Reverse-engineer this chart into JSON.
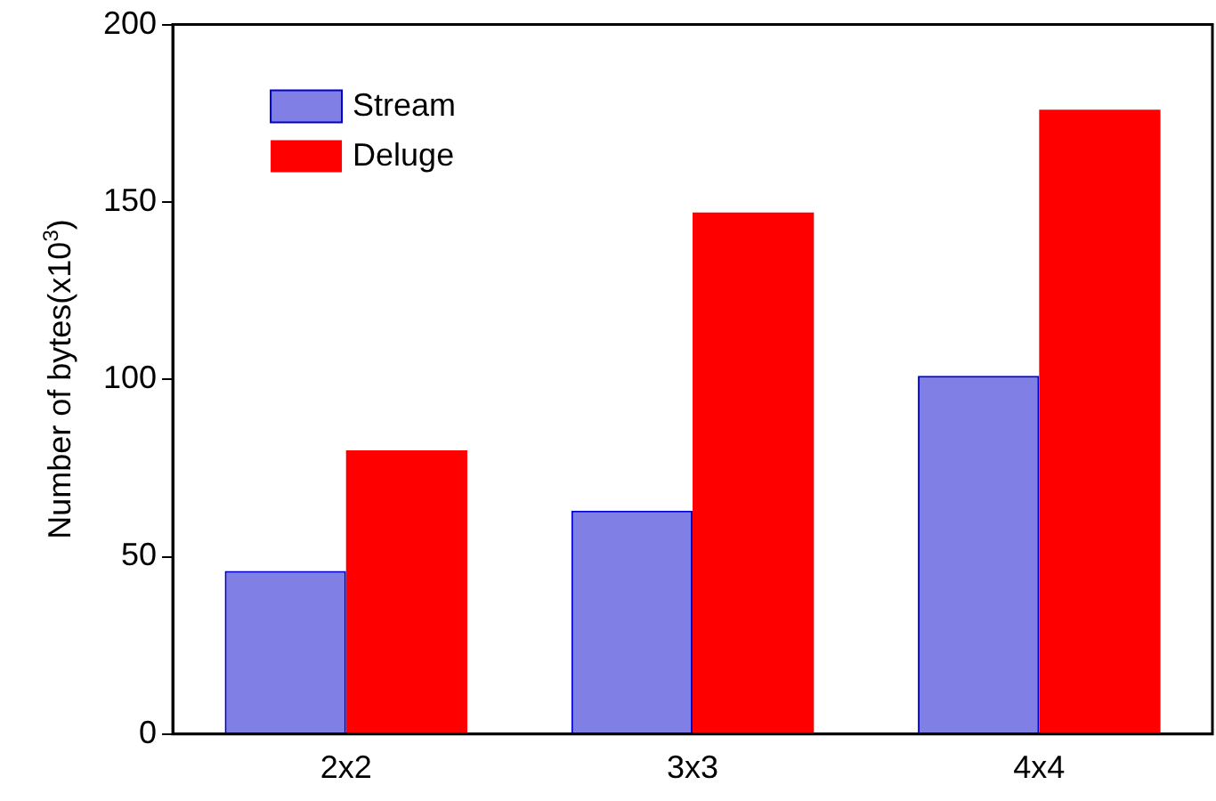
{
  "chart_data": {
    "type": "bar",
    "ylabel": "Number of bytes(x10$^{3}$)",
    "categories": [
      "2x2",
      "3x3",
      "4x4"
    ],
    "series": [
      {
        "name": "Stream",
        "color": "#0000cc",
        "values": [
          46,
          63,
          101
        ]
      },
      {
        "name": "Deluge",
        "color": "#ff0000",
        "values": [
          80,
          147,
          176
        ]
      }
    ],
    "ylim": [
      0,
      200
    ],
    "yticks": [
      0,
      50,
      100,
      150,
      200
    ],
    "legend": "top left",
    "grid": false
  }
}
